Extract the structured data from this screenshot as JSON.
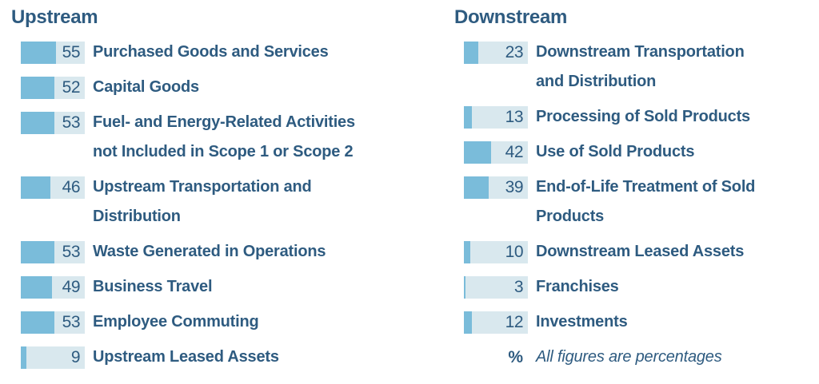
{
  "colors": {
    "text": "#2e5b80",
    "bar_fill": "#7abcda",
    "bar_background": "#d9e8ee",
    "page_background": "#ffffff"
  },
  "columns": [
    {
      "title": "Upstream",
      "items": [
        {
          "value": 55,
          "label": "Purchased Goods and Services"
        },
        {
          "value": 52,
          "label": "Capital Goods"
        },
        {
          "value": 53,
          "label": "Fuel- and Energy-Related Activities\nnot Included in Scope 1 or Scope 2"
        },
        {
          "value": 46,
          "label": "Upstream Transportation and\nDistribution"
        },
        {
          "value": 53,
          "label": "Waste Generated in Operations"
        },
        {
          "value": 49,
          "label": "Business Travel"
        },
        {
          "value": 53,
          "label": "Employee Commuting"
        },
        {
          "value": 9,
          "label": "Upstream Leased Assets"
        }
      ]
    },
    {
      "title": "Downstream",
      "items": [
        {
          "value": 23,
          "label": "Downstream Transportation\nand Distribution"
        },
        {
          "value": 13,
          "label": "Processing of Sold Products"
        },
        {
          "value": 42,
          "label": "Use of Sold Products"
        },
        {
          "value": 39,
          "label": "End-of-Life Treatment of Sold\nProducts"
        },
        {
          "value": 10,
          "label": "Downstream Leased Assets"
        },
        {
          "value": 3,
          "label": "Franchises"
        },
        {
          "value": 12,
          "label": "Investments"
        }
      ],
      "footnote": {
        "symbol": "%",
        "text": "All figures are percentages"
      }
    }
  ],
  "chart_data": {
    "type": "bar",
    "title": "",
    "unit": "percent",
    "note": "All figures are percentages",
    "xlim": [
      0,
      100
    ],
    "legend_position": "none",
    "grid": false,
    "series": [
      {
        "name": "Upstream",
        "categories": [
          "Purchased Goods and Services",
          "Capital Goods",
          "Fuel- and Energy-Related Activities not Included in Scope 1 or Scope 2",
          "Upstream Transportation and Distribution",
          "Waste Generated in Operations",
          "Business Travel",
          "Employee Commuting",
          "Upstream Leased Assets"
        ],
        "values": [
          55,
          52,
          53,
          46,
          53,
          49,
          53,
          9
        ]
      },
      {
        "name": "Downstream",
        "categories": [
          "Downstream Transportation and Distribution",
          "Processing of Sold Products",
          "Use of Sold Products",
          "End-of-Life Treatment of Sold Products",
          "Downstream Leased Assets",
          "Franchises",
          "Investments"
        ],
        "values": [
          23,
          13,
          42,
          39,
          10,
          3,
          12
        ]
      }
    ]
  }
}
